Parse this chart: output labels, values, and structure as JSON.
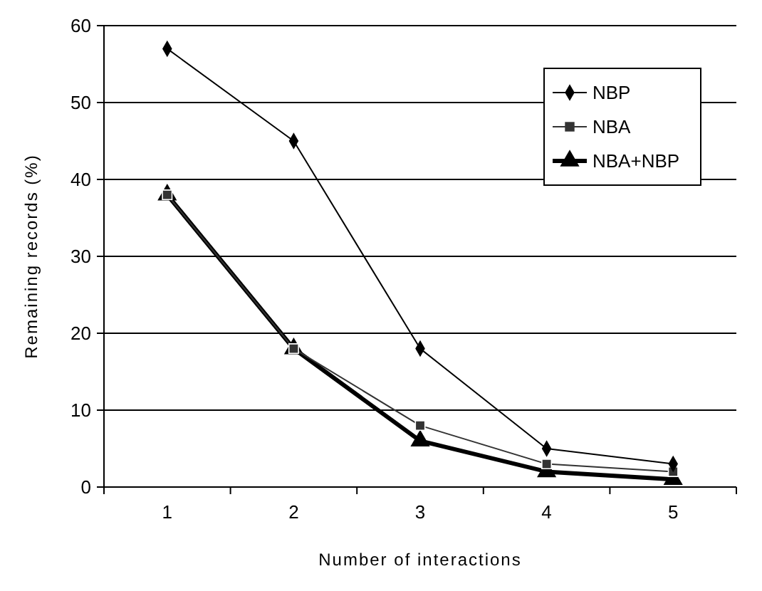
{
  "chart_data": {
    "type": "line",
    "xlabel": "Number of interactions",
    "ylabel": "Remaining records (%)",
    "categories": [
      "1",
      "2",
      "3",
      "4",
      "5"
    ],
    "ylim": [
      0,
      60
    ],
    "yticks": [
      0,
      10,
      20,
      30,
      40,
      50,
      60
    ],
    "grid": "y",
    "legend": "top right",
    "series": [
      {
        "name": "NBP",
        "color": "#000000",
        "marker": "diamond",
        "values": [
          57,
          45,
          18,
          5,
          3
        ]
      },
      {
        "name": "NBA",
        "color": "#333333",
        "marker": "square",
        "values": [
          38,
          18,
          8,
          3,
          2
        ]
      },
      {
        "name": "NBA+NBP",
        "color": "#000000",
        "marker": "triangle",
        "values": [
          38,
          18,
          6,
          2,
          1
        ]
      }
    ]
  }
}
